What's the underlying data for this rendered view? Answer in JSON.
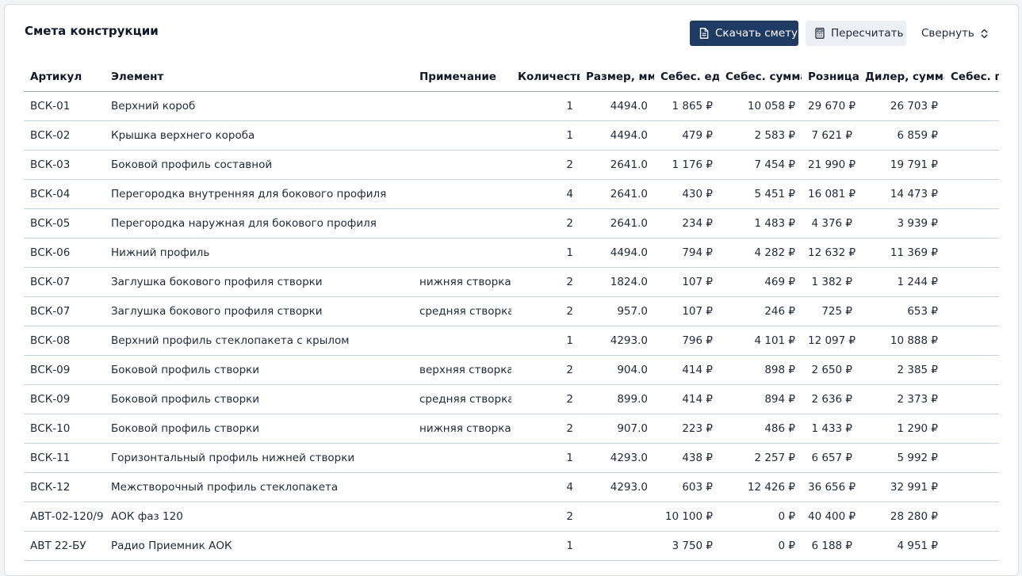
{
  "header": {
    "title": "Смета конструкции",
    "download_label": "Скачать смету",
    "recalc_label": "Пересчитать",
    "collapse_label": "Свернуть"
  },
  "table": {
    "columns": [
      "Артикул",
      "Элемент",
      "Примечание",
      "Количество",
      "Размер, мм",
      "Себес. ед.",
      "Себес. сумма",
      "Розница",
      "Дилер, сумма",
      "Себес. п"
    ],
    "rows": [
      [
        "ВСК-01",
        "Верхний короб",
        "",
        "1",
        "4494.0",
        "1 865 ₽",
        "10 058 ₽",
        "29 670 ₽",
        "26 703 ₽",
        ""
      ],
      [
        "ВСК-02",
        "Крышка верхнего короба",
        "",
        "1",
        "4494.0",
        "479 ₽",
        "2 583 ₽",
        "7 621 ₽",
        "6 859 ₽",
        ""
      ],
      [
        "ВСК-03",
        "Боковой профиль составной",
        "",
        "2",
        "2641.0",
        "1 176 ₽",
        "7 454 ₽",
        "21 990 ₽",
        "19 791 ₽",
        ""
      ],
      [
        "ВСК-04",
        "Перегородка внутренняя для бокового профиля",
        "",
        "4",
        "2641.0",
        "430 ₽",
        "5 451 ₽",
        "16 081 ₽",
        "14 473 ₽",
        ""
      ],
      [
        "ВСК-05",
        "Перегородка наружная для бокового профиля",
        "",
        "2",
        "2641.0",
        "234 ₽",
        "1 483 ₽",
        "4 376 ₽",
        "3 939 ₽",
        ""
      ],
      [
        "ВСК-06",
        "Нижний профиль",
        "",
        "1",
        "4494.0",
        "794 ₽",
        "4 282 ₽",
        "12 632 ₽",
        "11 369 ₽",
        ""
      ],
      [
        "ВСК-07",
        "Заглушка бокового профиля створки",
        "нижняя створка",
        "2",
        "1824.0",
        "107 ₽",
        "469 ₽",
        "1 382 ₽",
        "1 244 ₽",
        ""
      ],
      [
        "ВСК-07",
        "Заглушка бокового профиля створки",
        "средняя створка",
        "2",
        "957.0",
        "107 ₽",
        "246 ₽",
        "725 ₽",
        "653 ₽",
        ""
      ],
      [
        "ВСК-08",
        "Верхний профиль стеклопакета с крылом",
        "",
        "1",
        "4293.0",
        "796 ₽",
        "4 101 ₽",
        "12 097 ₽",
        "10 888 ₽",
        ""
      ],
      [
        "ВСК-09",
        "Боковой профиль створки",
        "верхняя створка",
        "2",
        "904.0",
        "414 ₽",
        "898 ₽",
        "2 650 ₽",
        "2 385 ₽",
        ""
      ],
      [
        "ВСК-09",
        "Боковой профиль створки",
        "средняя створка",
        "2",
        "899.0",
        "414 ₽",
        "894 ₽",
        "2 636 ₽",
        "2 373 ₽",
        ""
      ],
      [
        "ВСК-10",
        "Боковой профиль створки",
        "нижняя створка",
        "2",
        "907.0",
        "223 ₽",
        "486 ₽",
        "1 433 ₽",
        "1 290 ₽",
        ""
      ],
      [
        "ВСК-11",
        "Горизонтальный профиль нижней створки",
        "",
        "1",
        "4293.0",
        "438 ₽",
        "2 257 ₽",
        "6 657 ₽",
        "5 992 ₽",
        ""
      ],
      [
        "ВСК-12",
        "Межстворочный профиль стеклопакета",
        "",
        "4",
        "4293.0",
        "603 ₽",
        "12 426 ₽",
        "36 656 ₽",
        "32 991 ₽",
        ""
      ],
      [
        "АВТ-02-120/9",
        "АОК фаз 120",
        "",
        "2",
        "",
        "10 100 ₽",
        "0 ₽",
        "40 400 ₽",
        "28 280 ₽",
        ""
      ],
      [
        "АВТ 22-БУ",
        "Радио Приемник АОК",
        "",
        "1",
        "",
        "3 750 ₽",
        "0 ₽",
        "6 188 ₽",
        "4 951 ₽",
        ""
      ]
    ]
  }
}
